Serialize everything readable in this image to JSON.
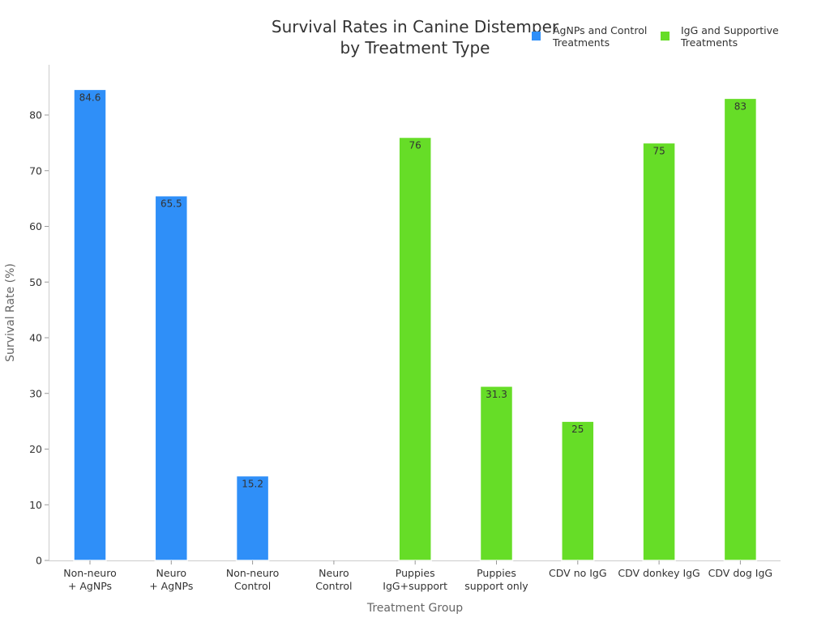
{
  "chart_data": {
    "type": "bar",
    "title": [
      "Survival Rates in Canine Distemper",
      "by Treatment Type"
    ],
    "xlabel": "Treatment Group",
    "ylabel": "Survival Rate (%)",
    "ylim": [
      0,
      88
    ],
    "yticks": [
      0,
      10,
      20,
      30,
      40,
      50,
      60,
      70,
      80
    ],
    "grid": false,
    "legend_position": "top-right",
    "categories": [
      [
        "Non-neuro",
        "+ AgNPs"
      ],
      [
        "Neuro",
        "+ AgNPs"
      ],
      [
        "Non-neuro",
        "Control"
      ],
      [
        "Neuro",
        "Control"
      ],
      [
        "Puppies",
        "IgG+support"
      ],
      [
        "Puppies",
        "support only"
      ],
      [
        "CDV no IgG"
      ],
      [
        "CDV donkey IgG"
      ],
      [
        "CDV dog IgG"
      ]
    ],
    "series": [
      {
        "name": [
          "AgNPs and Control",
          "Treatments"
        ],
        "color": "#2f8ff8",
        "values": [
          84.6,
          65.5,
          15.2,
          0,
          null,
          null,
          null,
          null,
          null
        ]
      },
      {
        "name": [
          "IgG and Supportive",
          "Treatments"
        ],
        "color": "#66dd27",
        "values": [
          null,
          null,
          null,
          null,
          76,
          31.3,
          25,
          75,
          83
        ]
      }
    ]
  }
}
